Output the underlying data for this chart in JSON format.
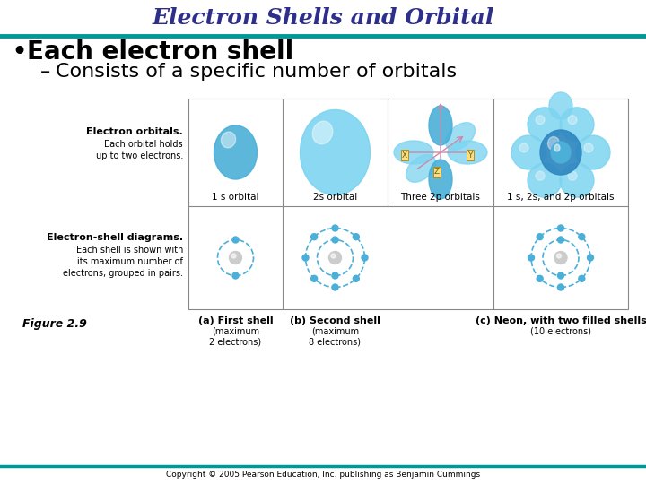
{
  "title": "Electron Shells and Orbital",
  "title_color": "#2E2E8B",
  "title_fontsize": 18,
  "bullet_text": "Each electron shell",
  "bullet_fontsize": 20,
  "sub_bullet_text": "Consists of a specific number of orbitals",
  "sub_bullet_fontsize": 16,
  "left_label1_bold": "Electron orbitals.",
  "left_label2_bold": "Electron-shell diagrams.",
  "col1_label": "1 s orbital",
  "col2_label": "2s orbital",
  "col3_label": "Three 2p orbitals",
  "col4_label": "1 s, 2s, and 2p orbitals",
  "caption_a_bold": "(a) First shell",
  "caption_a_normal": "(maximum\n2 electrons)",
  "caption_b_bold": "(b) Second shell",
  "caption_b_normal": "(maximum\n8 electrons)",
  "caption_c_bold": "(c) Neon, with two filled shells",
  "caption_c_normal": "(10 electrons)",
  "figure_label": "Figure 2.9",
  "copyright": "Copyright © 2005 Pearson Education, Inc. publishing as Benjamin Cummings",
  "teal_line_color": "#009999",
  "grid_line_color": "#888888",
  "orbital_blue_light": "#7DD4F0",
  "orbital_blue_mid": "#4BAFD8",
  "orbital_blue_dark": "#2E88C0",
  "bg_color": "#FFFFFF",
  "text_color": "#000000",
  "axis_color": "#CC88AA",
  "axis_label_bg": "#FFDD88",
  "small_font": 7.5,
  "tiny_font": 6.5,
  "label_font": 8
}
